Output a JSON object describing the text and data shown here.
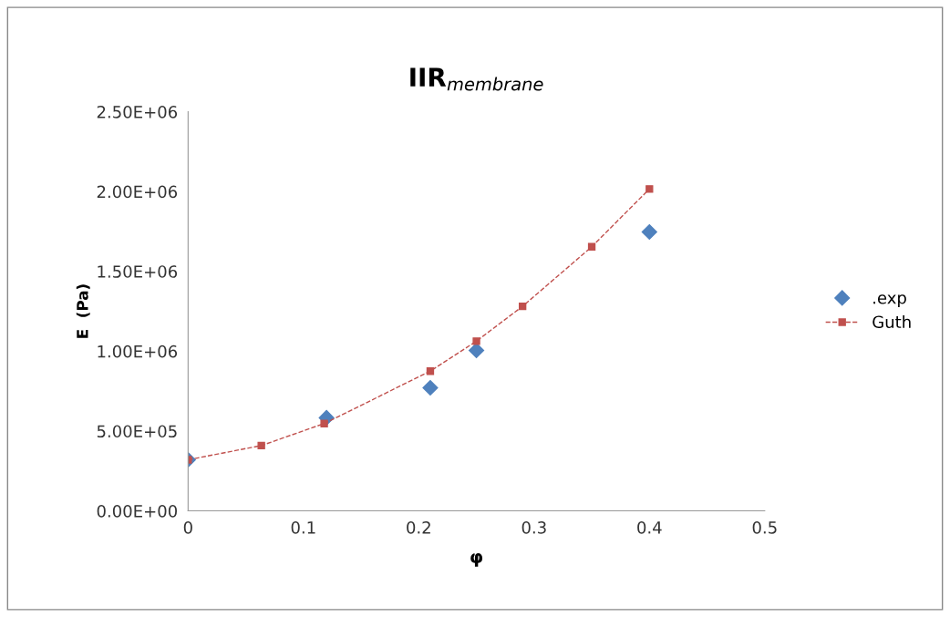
{
  "chart_data": {
    "type": "scatter",
    "title": "IIR$_{membrane}$",
    "xlabel": "φ",
    "ylabel": "E  (Pa)",
    "xlim": [
      0,
      0.5
    ],
    "xticks": [
      0,
      0.1,
      0.2,
      0.3,
      0.4,
      0.5
    ],
    "ylim": [
      0,
      2500000
    ],
    "yticks": [
      {
        "value": 0,
        "label": "0.00E+00"
      },
      {
        "value": 500000,
        "label": "5.00E+05"
      },
      {
        "value": 1000000,
        "label": "1.00E+06"
      },
      {
        "value": 1500000,
        "label": "1.50E+06"
      },
      {
        "value": 2000000,
        "label": "2.00E+06"
      },
      {
        "value": 2500000,
        "label": "2.50E+06"
      }
    ],
    "grid": false,
    "legend": "right",
    "series": [
      {
        "name": ".exp",
        "color": "#4f81bd",
        "marker": "diamond",
        "x": [
          0,
          0.12,
          0.21,
          0.25,
          0.4
        ],
        "values": [
          320000,
          583000,
          771000,
          1005000,
          1747000
        ]
      },
      {
        "name": "Guth",
        "type": "line",
        "color": "#c0504d",
        "marker": "square",
        "line_style": "dashed",
        "x": [
          0,
          0.0635,
          0.118,
          0.21,
          0.25,
          0.29,
          0.35,
          0.4
        ],
        "values": [
          320000,
          409000,
          547000,
          875000,
          1063000,
          1281000,
          1654000,
          2016000
        ]
      }
    ]
  }
}
